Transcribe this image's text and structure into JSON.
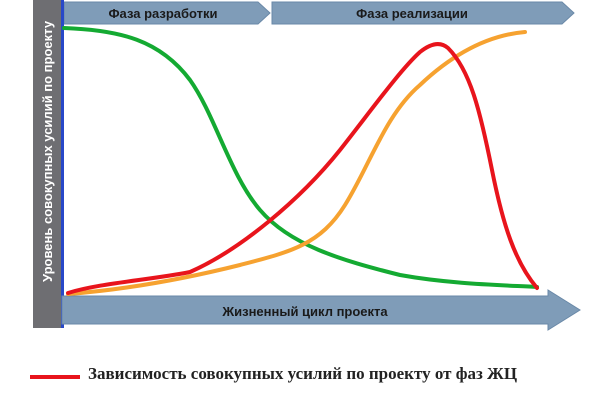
{
  "diagram": {
    "phase_left_label": "Фаза разработки",
    "phase_right_label": "Фаза реализации",
    "x_axis_label": "Жизненный цикл проекта",
    "y_axis_label": "Уровень совокупных усилий по проекту",
    "legend": {
      "red_label": "Зависимость совокупных усилий по проекту от фаз ЖЦ"
    },
    "colors": {
      "arrow_fill": "#7f9cb8",
      "arrow_stroke": "#6a89a8",
      "axis_bar": "#6e6e72",
      "axis_border": "#2848c8",
      "red": "#e8141c",
      "green": "#14aa32",
      "orange": "#f6a230"
    }
  }
}
